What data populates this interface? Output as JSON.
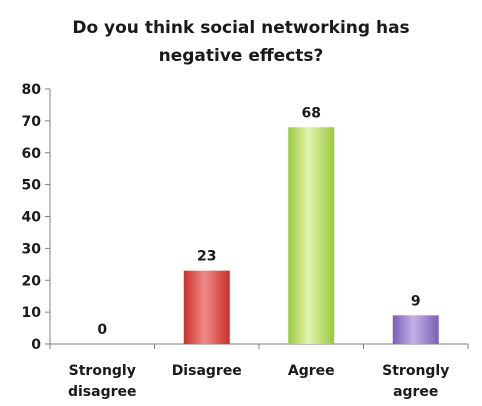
{
  "chart_data": {
    "type": "bar",
    "title_lines": [
      "Do you think social networking has",
      "negative effects?"
    ],
    "categories": [
      [
        "Strongly",
        "disagree"
      ],
      [
        "Disagree"
      ],
      [
        "Agree"
      ],
      [
        "Strongly",
        "agree"
      ]
    ],
    "values": [
      0,
      23,
      68,
      9
    ],
    "data_labels": [
      "0",
      "23",
      "68",
      "9"
    ],
    "colors": [
      "#d9544d",
      "#d9544d",
      "#a8d64a",
      "#8a6fc4"
    ],
    "ylim": [
      0,
      80
    ],
    "yticks": [
      0,
      10,
      20,
      30,
      40,
      50,
      60,
      70,
      80
    ],
    "ytick_labels": [
      "0",
      "10",
      "20",
      "30",
      "40",
      "50",
      "60",
      "70",
      "80"
    ],
    "grid": false,
    "legend": "none"
  }
}
